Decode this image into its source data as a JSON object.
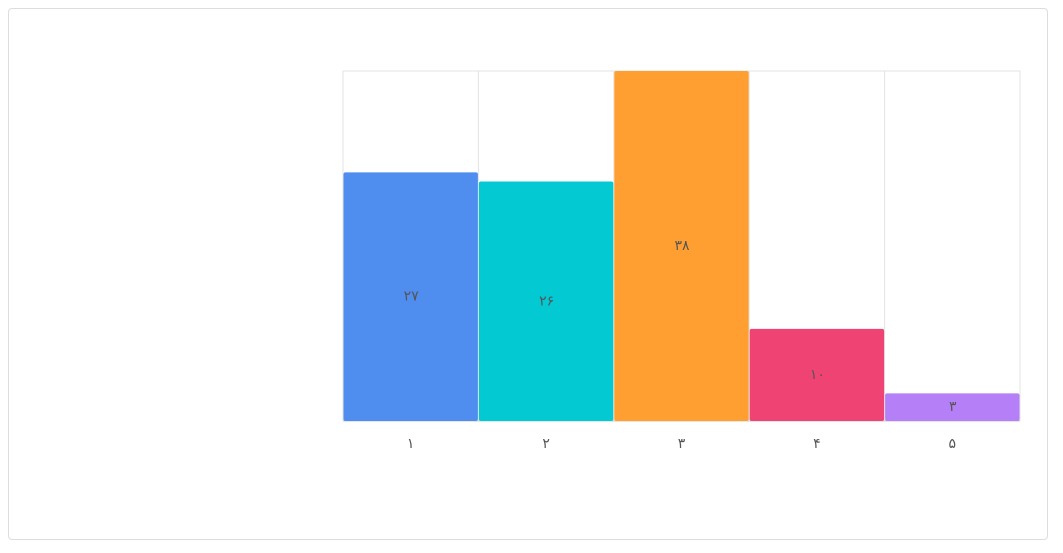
{
  "chart_data": {
    "type": "bar",
    "categories": [
      "۱",
      "۲",
      "۳",
      "۴",
      "۵"
    ],
    "values": [
      27,
      26,
      38,
      10,
      3
    ],
    "value_labels": [
      "۲۷",
      "۲۶",
      "۳۸",
      "۱۰",
      "۳"
    ],
    "colors": [
      "#4f8def",
      "#03c9d3",
      "#ff9f32",
      "#ef4374",
      "#b57ff7"
    ],
    "ylim": [
      0,
      38
    ]
  }
}
